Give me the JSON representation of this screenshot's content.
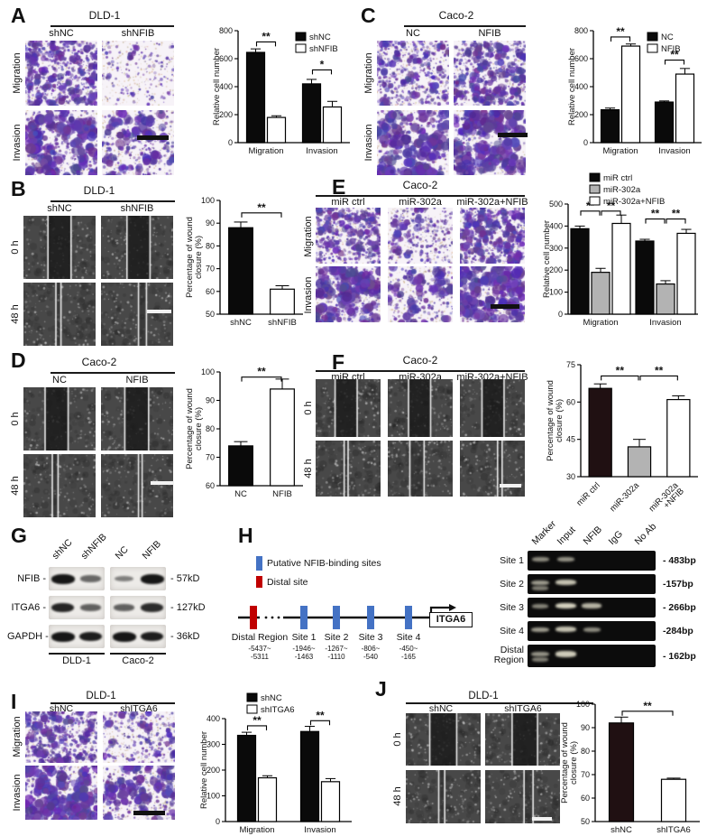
{
  "panels": {
    "a": {
      "label": "A",
      "title": "DLD-1",
      "cols": [
        "shNC",
        "shNFIB"
      ],
      "rows": [
        "Migration",
        "Invasion"
      ]
    },
    "b": {
      "label": "B",
      "title": "DLD-1",
      "cols": [
        "shNC",
        "shNFIB"
      ],
      "rows": [
        "0 h",
        "48 h"
      ]
    },
    "c": {
      "label": "C",
      "title": "Caco-2",
      "cols": [
        "NC",
        "NFIB"
      ],
      "rows": [
        "Migration",
        "Invasion"
      ]
    },
    "d": {
      "label": "D",
      "title": "Caco-2",
      "cols": [
        "NC",
        "NFIB"
      ],
      "rows": [
        "0 h",
        "48 h"
      ]
    },
    "e": {
      "label": "E",
      "title": "Caco-2",
      "cols": [
        "miR ctrl",
        "miR-302a",
        "miR-302a+NFIB"
      ],
      "rows": [
        "Migration",
        "Invasion"
      ]
    },
    "f": {
      "label": "F",
      "title": "Caco-2",
      "cols": [
        "miR ctrl",
        "miR-302a",
        "miR-302a+NFIB"
      ],
      "rows": [
        "0 h",
        "48 h"
      ]
    },
    "g": {
      "label": "G",
      "lanes": [
        "shNC",
        "shNFIB",
        "NC",
        "NFIB"
      ],
      "groups": [
        "DLD-1",
        "Caco-2"
      ],
      "rows": [
        {
          "name": "NFIB -",
          "size": "- 57kD",
          "bands": [
            1,
            0.45,
            0.3,
            1
          ]
        },
        {
          "name": "ITGA6 -",
          "size": "- 127kD",
          "bands": [
            0.9,
            0.5,
            0.5,
            0.85
          ]
        },
        {
          "name": "GAPDH -",
          "size": "- 36kD",
          "bands": [
            1,
            0.95,
            1,
            0.95
          ]
        }
      ]
    },
    "h": {
      "label": "H",
      "legend": [
        {
          "color": "#4472c4",
          "text": "Putative NFIB-binding sites"
        },
        {
          "color": "#c00000",
          "text": "Distal site"
        }
      ],
      "gene": "ITGA6",
      "sites": [
        {
          "name": "Distal Region",
          "range": "-5437~\n-5311"
        },
        {
          "name": "Site 1",
          "range": "-1946~\n-1463"
        },
        {
          "name": "Site 2",
          "range": "-1267~\n-1110"
        },
        {
          "name": "Site 3",
          "range": "-806~\n-540"
        },
        {
          "name": "Site 4",
          "range": "-450~\n-165"
        }
      ],
      "gel": {
        "lanes": [
          "Marker",
          "Input",
          "NFIB",
          "IgG",
          "No Ab"
        ],
        "rows": [
          {
            "name": "Site 1",
            "bp": "- 483bp",
            "bands": [
              [
                0,
                0.5
              ],
              [
                1,
                0.55
              ]
            ]
          },
          {
            "name": "Site 2",
            "bp": "-157bp",
            "bands": [
              [
                0,
                0.6
              ],
              [
                0,
                0.4,
                6
              ],
              [
                1,
                0.85
              ]
            ]
          },
          {
            "name": "Site 3",
            "bp": "- 266bp",
            "bands": [
              [
                0,
                0.45
              ],
              [
                1,
                0.95
              ],
              [
                2,
                0.75
              ]
            ]
          },
          {
            "name": "Site 4",
            "bp": "-284bp",
            "bands": [
              [
                0,
                0.6
              ],
              [
                1,
                0.85
              ],
              [
                2,
                0.5
              ]
            ]
          },
          {
            "name": "Distal\nRegion",
            "bp": "- 162bp",
            "bands": [
              [
                0,
                0.55
              ],
              [
                0,
                0.4,
                6
              ],
              [
                1,
                0.9
              ]
            ]
          }
        ]
      }
    },
    "i": {
      "label": "I",
      "title": "DLD-1",
      "cols": [
        "shNC",
        "shITGA6"
      ],
      "rows": [
        "Migration",
        "Invasion"
      ]
    },
    "j": {
      "label": "J",
      "title": "DLD-1",
      "cols": [
        "shNC",
        "shITGA6"
      ],
      "rows": [
        "0 h",
        "48 h"
      ]
    }
  },
  "chart_data": [
    {
      "id": "chartA",
      "type": "bar",
      "ylabel": "Relative cell number",
      "ylim": [
        0,
        800
      ],
      "yticks": [
        0,
        200,
        400,
        600,
        800
      ],
      "categories": [
        "Migration",
        "Invasion"
      ],
      "series": [
        {
          "name": "shNC",
          "color": "#0a0a0a",
          "values": [
            645,
            420
          ],
          "errors": [
            25,
            32
          ]
        },
        {
          "name": "shNFIB",
          "color": "#ffffff",
          "values": [
            180,
            255
          ],
          "errors": [
            12,
            40
          ]
        }
      ],
      "legend_pos": "tr",
      "sig": [
        {
          "bars": [
            0,
            1
          ],
          "y": 720,
          "label": "**"
        },
        {
          "bars": [
            2,
            3
          ],
          "y": 520,
          "label": "*"
        }
      ]
    },
    {
      "id": "chartC",
      "type": "bar",
      "ylabel": "Relative cell number",
      "ylim": [
        0,
        800
      ],
      "yticks": [
        0,
        200,
        400,
        600,
        800
      ],
      "categories": [
        "Migration",
        "Invasion"
      ],
      "series": [
        {
          "name": "NC",
          "color": "#0a0a0a",
          "values": [
            235,
            290
          ],
          "errors": [
            12,
            8
          ]
        },
        {
          "name": "NFIB",
          "color": "#ffffff",
          "values": [
            690,
            490
          ],
          "errors": [
            15,
            40
          ]
        }
      ],
      "legend_pos": "tr",
      "sig": [
        {
          "bars": [
            0,
            1
          ],
          "y": 755,
          "label": "**"
        },
        {
          "bars": [
            2,
            3
          ],
          "y": 590,
          "label": "**"
        }
      ]
    },
    {
      "id": "chartE",
      "type": "bar",
      "ylabel": "Relative cell number",
      "ylim": [
        0,
        500
      ],
      "yticks": [
        0,
        100,
        200,
        300,
        400,
        500
      ],
      "pad_top": 36,
      "pad_bottom": 24,
      "categories": [
        "Migration",
        "Invasion"
      ],
      "series": [
        {
          "name": "miR ctrl",
          "color": "#0a0a0a",
          "values": [
            388,
            332
          ],
          "errors": [
            12,
            8
          ]
        },
        {
          "name": "miR-302a",
          "color": "#b3b3b3",
          "values": [
            190,
            137
          ],
          "errors": [
            18,
            15
          ]
        },
        {
          "name": "miR-302a+NFIB",
          "color": "#ffffff",
          "values": [
            412,
            367
          ],
          "errors": [
            38,
            18
          ]
        }
      ],
      "legend_pos": "above",
      "legend_dx": 24,
      "sig": [
        {
          "bars": [
            0,
            1
          ],
          "y": 468,
          "label": "**"
        },
        {
          "bars": [
            1,
            2
          ],
          "y": 468,
          "label": "**"
        },
        {
          "bars": [
            3,
            4
          ],
          "y": 432,
          "label": "**"
        },
        {
          "bars": [
            4,
            5
          ],
          "y": 432,
          "label": "**"
        }
      ]
    },
    {
      "id": "chartI",
      "type": "bar",
      "ylabel": "Relative cell number",
      "ylim": [
        0,
        400
      ],
      "yticks": [
        0,
        100,
        200,
        300,
        400
      ],
      "pad_top": 30,
      "categories": [
        "Migration",
        "Invasion"
      ],
      "series": [
        {
          "name": "shNC",
          "color": "#0a0a0a",
          "values": [
            335,
            350
          ],
          "errors": [
            12,
            20
          ]
        },
        {
          "name": "shITGA6",
          "color": "#ffffff",
          "values": [
            170,
            155
          ],
          "errors": [
            8,
            12
          ]
        }
      ],
      "legend_pos": "above",
      "legend_dx": 24,
      "sig": [
        {
          "bars": [
            0,
            1
          ],
          "y": 372,
          "label": "**"
        },
        {
          "bars": [
            2,
            3
          ],
          "y": 392,
          "label": "**"
        }
      ]
    },
    {
      "id": "chartB",
      "type": "bar",
      "ylabel": "Percentage of wound\nclosure (%)",
      "ylim": [
        50,
        100
      ],
      "yticks": [
        50,
        60,
        70,
        80,
        90,
        100
      ],
      "bars": [
        {
          "label": "shNC",
          "value": 88,
          "error": 2.5,
          "color": "#0a0a0a"
        },
        {
          "label": "shNFIB",
          "value": 61,
          "error": 1.5,
          "color": "#ffffff"
        }
      ],
      "sig": [
        {
          "bars": [
            0,
            1
          ],
          "y": 94.5,
          "label": "**"
        }
      ]
    },
    {
      "id": "chartD",
      "type": "bar",
      "ylabel": "Percentage of wound\nclosure (%)",
      "ylim": [
        60,
        100
      ],
      "yticks": [
        60,
        70,
        80,
        90,
        100
      ],
      "bars": [
        {
          "label": "NC",
          "value": 74,
          "error": 1.5,
          "color": "#0a0a0a"
        },
        {
          "label": "NFIB",
          "value": 94,
          "error": 3.5,
          "color": "#ffffff"
        }
      ],
      "sig": [
        {
          "bars": [
            0,
            1
          ],
          "y": 98.2,
          "label": "**"
        }
      ]
    },
    {
      "id": "chartF",
      "type": "bar",
      "ylabel": "Percentage of wound\nclosure (%)",
      "ylim": [
        30,
        75
      ],
      "yticks": [
        30,
        45,
        60,
        75
      ],
      "rotate_xlabels": true,
      "bars": [
        {
          "label": "miR ctrl",
          "value": 65.5,
          "error": 1.8,
          "color": "#201012"
        },
        {
          "label": "miR-302a",
          "value": 42,
          "error": 3,
          "color": "#b3b3b3"
        },
        {
          "label": "miR-302a\n+NFIB",
          "value": 61,
          "error": 1.5,
          "color": "#ffffff"
        }
      ],
      "sig": [
        {
          "bars": [
            0,
            1
          ],
          "y": 70.5,
          "label": "**"
        },
        {
          "bars": [
            1,
            2
          ],
          "y": 70.5,
          "label": "**"
        }
      ]
    },
    {
      "id": "chartJ",
      "type": "bar",
      "ylabel": "Percentage of wound\nclosure (%)",
      "ylim": [
        50,
        100
      ],
      "yticks": [
        50,
        60,
        70,
        80,
        90,
        100
      ],
      "bars": [
        {
          "label": "shNC",
          "value": 92,
          "error": 2.5,
          "color": "#201012"
        },
        {
          "label": "shITGA6",
          "value": 68,
          "error": 0.5,
          "color": "#ffffff"
        }
      ],
      "sig": [
        {
          "bars": [
            0,
            1
          ],
          "y": 97,
          "label": "**"
        }
      ]
    }
  ]
}
